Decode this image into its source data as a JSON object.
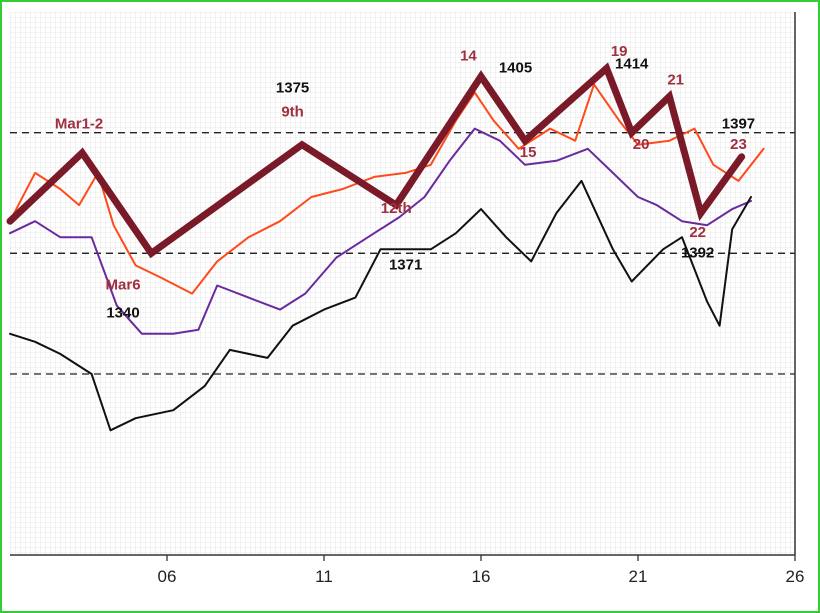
{
  "chart_data": {
    "type": "line",
    "title": "",
    "xlabel": "",
    "ylabel": "",
    "x_ticks": [
      {
        "label": "06",
        "x": 6
      },
      {
        "label": "11",
        "x": 11
      },
      {
        "label": "16",
        "x": 16
      },
      {
        "label": "21",
        "x": 21
      },
      {
        "label": "26",
        "x": 26
      }
    ],
    "xlim": [
      1,
      26
    ],
    "ylim": [
      1295,
      1430
    ],
    "grid": true,
    "reference_levels": [
      1400,
      1370,
      1340
    ],
    "colors": {
      "zigzag": "#7a1a28",
      "orange": "#ff4a1a",
      "purple": "#6a2aa0",
      "black": "#111111",
      "annotation_red": "#a03040",
      "annotation_black": "#111111",
      "frame": "#33cc33"
    },
    "series": [
      {
        "name": "",
        "style": "thick",
        "color": "#7a1a28",
        "points": [
          [
            1.0,
            1378
          ],
          [
            3.3,
            1395
          ],
          [
            5.5,
            1370
          ],
          [
            10.3,
            1397
          ],
          [
            13.3,
            1382
          ],
          [
            16.0,
            1414
          ],
          [
            17.4,
            1398
          ],
          [
            20.0,
            1416
          ],
          [
            20.8,
            1400
          ],
          [
            22.0,
            1409
          ],
          [
            23.0,
            1380
          ],
          [
            24.3,
            1394
          ]
        ]
      },
      {
        "name": "",
        "style": "thin",
        "color": "#ff4a1a",
        "points": [
          [
            1.0,
            1378
          ],
          [
            1.8,
            1390
          ],
          [
            2.6,
            1386
          ],
          [
            3.2,
            1382
          ],
          [
            3.8,
            1390
          ],
          [
            4.3,
            1377
          ],
          [
            5.0,
            1367
          ],
          [
            5.8,
            1364
          ],
          [
            6.8,
            1360
          ],
          [
            7.6,
            1368
          ],
          [
            8.6,
            1374
          ],
          [
            9.6,
            1378
          ],
          [
            10.6,
            1384
          ],
          [
            11.6,
            1386
          ],
          [
            12.6,
            1389
          ],
          [
            13.6,
            1390
          ],
          [
            14.4,
            1392
          ],
          [
            15.2,
            1403
          ],
          [
            15.8,
            1410
          ],
          [
            16.4,
            1403
          ],
          [
            17.2,
            1396
          ],
          [
            18.2,
            1401
          ],
          [
            19.0,
            1398
          ],
          [
            19.6,
            1412
          ],
          [
            20.4,
            1403
          ],
          [
            21.0,
            1397
          ],
          [
            22.0,
            1398
          ],
          [
            22.8,
            1401
          ],
          [
            23.4,
            1392
          ],
          [
            24.2,
            1388
          ],
          [
            25.0,
            1396
          ]
        ]
      },
      {
        "name": "",
        "style": "thin",
        "color": "#6a2aa0",
        "points": [
          [
            1.0,
            1375
          ],
          [
            1.8,
            1378
          ],
          [
            2.6,
            1374
          ],
          [
            3.6,
            1374
          ],
          [
            4.4,
            1357
          ],
          [
            5.2,
            1350
          ],
          [
            6.2,
            1350
          ],
          [
            7.0,
            1351
          ],
          [
            7.6,
            1362
          ],
          [
            8.6,
            1359
          ],
          [
            9.6,
            1356
          ],
          [
            10.4,
            1360
          ],
          [
            11.4,
            1369
          ],
          [
            12.4,
            1374
          ],
          [
            13.4,
            1379
          ],
          [
            14.2,
            1384
          ],
          [
            15.0,
            1393
          ],
          [
            15.8,
            1401
          ],
          [
            16.6,
            1398
          ],
          [
            17.4,
            1392
          ],
          [
            18.4,
            1393
          ],
          [
            19.4,
            1396
          ],
          [
            20.2,
            1390
          ],
          [
            21.0,
            1384
          ],
          [
            21.6,
            1382
          ],
          [
            22.4,
            1378
          ],
          [
            23.2,
            1377
          ],
          [
            24.0,
            1381
          ],
          [
            24.6,
            1383
          ]
        ]
      },
      {
        "name": "",
        "style": "thin",
        "color": "#111111",
        "points": [
          [
            1.0,
            1350
          ],
          [
            1.8,
            1348
          ],
          [
            2.6,
            1345
          ],
          [
            3.6,
            1340
          ],
          [
            4.2,
            1326
          ],
          [
            5.0,
            1329
          ],
          [
            6.2,
            1331
          ],
          [
            7.2,
            1337
          ],
          [
            8.0,
            1346
          ],
          [
            8.6,
            1345
          ],
          [
            9.2,
            1344
          ],
          [
            10.0,
            1352
          ],
          [
            11.0,
            1356
          ],
          [
            12.0,
            1359
          ],
          [
            12.8,
            1371
          ],
          [
            13.4,
            1371
          ],
          [
            14.4,
            1371
          ],
          [
            15.2,
            1375
          ],
          [
            16.0,
            1381
          ],
          [
            16.8,
            1374
          ],
          [
            17.6,
            1368
          ],
          [
            18.4,
            1380
          ],
          [
            19.2,
            1388
          ],
          [
            20.2,
            1371
          ],
          [
            20.8,
            1363
          ],
          [
            21.8,
            1371
          ],
          [
            22.4,
            1374
          ],
          [
            23.2,
            1358
          ],
          [
            23.6,
            1352
          ],
          [
            24.0,
            1376
          ],
          [
            24.6,
            1384
          ]
        ]
      }
    ],
    "annotations": [
      {
        "text": "Mar1-2",
        "x": 3.2,
        "y": 1401,
        "color": "red"
      },
      {
        "text": "Mar6",
        "x": 4.6,
        "y": 1361,
        "color": "red"
      },
      {
        "text": "1340",
        "x": 4.6,
        "y": 1354,
        "color": "black"
      },
      {
        "text": "1375",
        "x": 10.0,
        "y": 1410,
        "color": "black"
      },
      {
        "text": "9th",
        "x": 10.0,
        "y": 1404,
        "color": "red"
      },
      {
        "text": "12th",
        "x": 13.3,
        "y": 1380,
        "color": "red"
      },
      {
        "text": "1371",
        "x": 13.6,
        "y": 1366,
        "color": "black"
      },
      {
        "text": "14",
        "x": 15.6,
        "y": 1418,
        "color": "red"
      },
      {
        "text": "1405",
        "x": 17.1,
        "y": 1415,
        "color": "black"
      },
      {
        "text": "15",
        "x": 17.5,
        "y": 1394,
        "color": "red"
      },
      {
        "text": "19",
        "x": 20.4,
        "y": 1419,
        "color": "red"
      },
      {
        "text": "1414",
        "x": 20.8,
        "y": 1416,
        "color": "black"
      },
      {
        "text": "20",
        "x": 21.1,
        "y": 1396,
        "color": "red"
      },
      {
        "text": "21",
        "x": 22.2,
        "y": 1412,
        "color": "red"
      },
      {
        "text": "1397",
        "x": 24.2,
        "y": 1401,
        "color": "black"
      },
      {
        "text": "23",
        "x": 24.2,
        "y": 1396,
        "color": "red"
      },
      {
        "text": "22",
        "x": 22.9,
        "y": 1374,
        "color": "red"
      },
      {
        "text": "1392",
        "x": 22.9,
        "y": 1369,
        "color": "black"
      }
    ]
  }
}
